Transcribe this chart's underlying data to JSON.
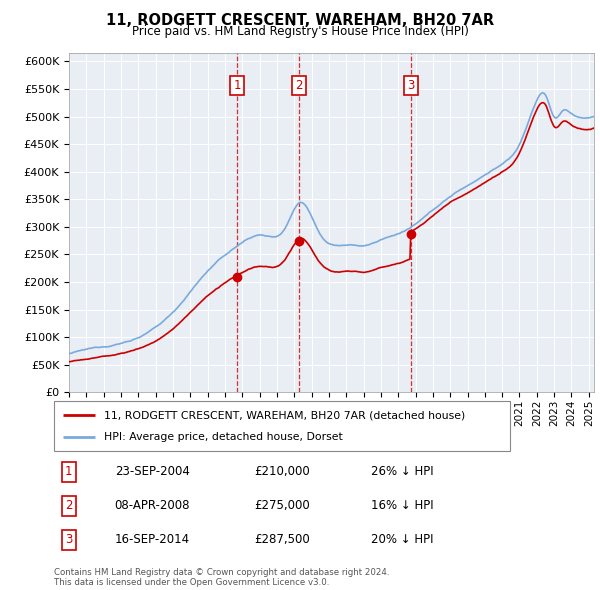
{
  "title": "11, RODGETT CRESCENT, WAREHAM, BH20 7AR",
  "subtitle": "Price paid vs. HM Land Registry's House Price Index (HPI)",
  "ytick_values": [
    0,
    50000,
    100000,
    150000,
    200000,
    250000,
    300000,
    350000,
    400000,
    450000,
    500000,
    550000,
    600000
  ],
  "ylim": [
    0,
    615000
  ],
  "xlim_start": 1995.0,
  "xlim_end": 2025.3,
  "hpi_color": "#7aaadd",
  "price_color": "#cc0000",
  "sale_dates": [
    2004.72,
    2008.27,
    2014.71
  ],
  "sale_prices": [
    210000,
    275000,
    287500
  ],
  "sale_labels": [
    "1",
    "2",
    "3"
  ],
  "legend_line1": "11, RODGETT CRESCENT, WAREHAM, BH20 7AR (detached house)",
  "legend_line2": "HPI: Average price, detached house, Dorset",
  "table_rows": [
    [
      "1",
      "23-SEP-2004",
      "£210,000",
      "26% ↓ HPI"
    ],
    [
      "2",
      "08-APR-2008",
      "£275,000",
      "16% ↓ HPI"
    ],
    [
      "3",
      "16-SEP-2014",
      "£287,500",
      "20% ↓ HPI"
    ]
  ],
  "footer": "Contains HM Land Registry data © Crown copyright and database right 2024.\nThis data is licensed under the Open Government Licence v3.0.",
  "chart_bg": "#e8eef4",
  "grid_color": "#ffffff"
}
